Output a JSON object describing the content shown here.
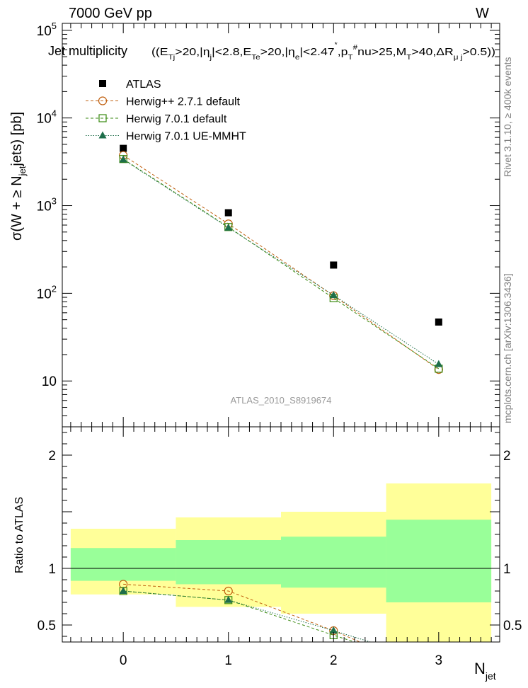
{
  "header": {
    "energy_label": "7000 GeV pp",
    "process_label": "W",
    "title": "Jet multiplicity",
    "cuts": "((E_Tj>20,|η_j|<2.8,E_Te>20,|η_e|<2.47,p_T^#nu>25,M_T>40,ΔR_μ j>0.5))",
    "watermark": "ATLAS_2010_S8919674",
    "side_label_rivet": "Rivet 3.1.10, ≥ 400k events",
    "side_label_mcplots": "mcplots.cern.ch [arXiv:1306.3436]"
  },
  "chart_data": [
    {
      "type": "scatter",
      "panel": "main",
      "xlabel": "N_jet",
      "ylabel": "σ(W + ≥ N_jet jets) [pb]",
      "yscale": "log",
      "xlim": [
        -0.58,
        3.58
      ],
      "ylim": [
        3,
        120000
      ],
      "x": [
        0,
        1,
        2,
        3
      ],
      "y_tick_labels": [
        "10",
        "10^2",
        "10^3",
        "10^4",
        "10^5"
      ],
      "legend_position": "top-left",
      "series": [
        {
          "name": "ATLAS",
          "marker": "square-filled",
          "color": "#000000",
          "line": "none",
          "values": [
            4500,
            830,
            210,
            47
          ]
        },
        {
          "name": "Herwig++ 2.7.1 default",
          "marker": "circle-open",
          "color": "#c06010",
          "line": "dashed",
          "values": [
            3750,
            620,
            94,
            13.5
          ]
        },
        {
          "name": "Herwig 7.0.1 default",
          "marker": "square-open",
          "color": "#3a8a10",
          "line": "dashed",
          "values": [
            3400,
            570,
            88,
            13.8
          ]
        },
        {
          "name": "Herwig 7.0.1 UE-MMHT",
          "marker": "triangle-filled",
          "color": "#1e6e4a",
          "line": "dotted",
          "values": [
            3350,
            560,
            95,
            15.5
          ]
        }
      ]
    },
    {
      "type": "line",
      "panel": "ratio",
      "xlabel": "N_jet",
      "ylabel": "Ratio to ATLAS",
      "xlim": [
        -0.58,
        3.58
      ],
      "ylim": [
        0.35,
        2.25
      ],
      "y_ticks": [
        0.5,
        1,
        1.5,
        2
      ],
      "y_tick_labels": [
        "0.5",
        "1",
        "",
        "2"
      ],
      "x_ticks": [
        0,
        1,
        2,
        3
      ],
      "x_tick_labels": [
        "0",
        "1",
        "2",
        "3"
      ],
      "reference_line": 1.0,
      "bands": [
        {
          "name": "stat+syst",
          "color": "#ffff99",
          "bins": [
            [
              -0.5,
              0.5
            ],
            [
              0.5,
              1.5
            ],
            [
              1.5,
              2.5
            ],
            [
              2.5,
              3.5
            ]
          ],
          "low": [
            0.77,
            0.66,
            0.6,
            0.35
          ],
          "high": [
            1.35,
            1.45,
            1.5,
            1.75
          ]
        },
        {
          "name": "stat",
          "color": "#99ff99",
          "bins": [
            [
              -0.5,
              0.5
            ],
            [
              0.5,
              1.5
            ],
            [
              1.5,
              2.5
            ],
            [
              2.5,
              3.5
            ]
          ],
          "low": [
            0.89,
            0.86,
            0.83,
            0.7
          ],
          "high": [
            1.18,
            1.25,
            1.28,
            1.43
          ]
        }
      ],
      "series": [
        {
          "name": "Herwig++ 2.7.1 default",
          "color": "#c06010",
          "marker": "circle-open",
          "line": "dashed",
          "x": [
            0,
            1,
            2,
            2.25
          ],
          "values": [
            0.86,
            0.8,
            0.45,
            0.35
          ]
        },
        {
          "name": "Herwig 7.0.1 default",
          "color": "#3a8a10",
          "marker": "square-open",
          "line": "dashed",
          "x": [
            0,
            1,
            2,
            2.2
          ],
          "values": [
            0.8,
            0.72,
            0.41,
            0.35
          ]
        },
        {
          "name": "Herwig 7.0.1 UE-MMHT",
          "color": "#1e6e4a",
          "marker": "triangle-filled",
          "line": "dotted",
          "x": [
            0,
            1,
            2,
            2.35
          ],
          "values": [
            0.8,
            0.72,
            0.45,
            0.35
          ]
        }
      ]
    }
  ]
}
